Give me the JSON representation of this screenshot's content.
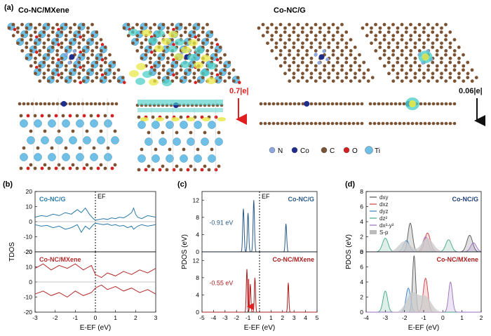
{
  "panel_a": {
    "tag": "(a)",
    "title_left": "Co-NC/MXene",
    "title_right": "Co-NC/G",
    "charge_left": "0.7|e|",
    "charge_right": "0.06|e|",
    "legend": [
      {
        "symbol": "N",
        "color": "#8fa8e0"
      },
      {
        "symbol": "Co",
        "color": "#1f2d8c"
      },
      {
        "symbol": "C",
        "color": "#7b5232"
      },
      {
        "symbol": "O",
        "color": "#d42020"
      },
      {
        "symbol": "Ti",
        "color": "#6fc0e6"
      }
    ],
    "colors": {
      "ti": "#6fc0e6",
      "carbon": "#7b5232",
      "oxygen": "#d42020",
      "nitrogen": "#8fa8e0",
      "cobalt": "#1f2d8c",
      "charge_accum": "#e8e84a",
      "charge_deplete": "#4fd0c8",
      "arrow_red": "#e02020"
    }
  },
  "chart_data": [
    {
      "panel": "(b)",
      "type": "line",
      "ylabel": "TDOS",
      "xlabel": "E-EF (eV)",
      "xlim": [
        -3,
        3
      ],
      "xticks": [
        -3,
        -2,
        -1,
        0,
        1,
        2,
        3
      ],
      "fermi_label": "EF",
      "subplots": [
        {
          "label": "Co-NC/G",
          "color": "#2a7aa8",
          "ylim": [
            -20,
            20
          ],
          "yticks": [
            20,
            10,
            0,
            -10,
            -20
          ],
          "series": [
            {
              "name": "up",
              "x": [
                -3,
                -2.7,
                -2.4,
                -2.1,
                -1.8,
                -1.5,
                -1.2,
                -0.9,
                -0.7,
                -0.5,
                -0.3,
                -0.1,
                0,
                0.2,
                0.4,
                0.6,
                0.8,
                1.0,
                1.2,
                1.4,
                1.6,
                1.8,
                1.9,
                2.0,
                2.1,
                2.3,
                2.6,
                3.0
              ],
              "y": [
                3,
                4,
                3.5,
                5,
                4,
                6,
                5,
                8,
                6,
                9,
                5,
                2,
                1,
                1.5,
                2,
                1.5,
                2.5,
                2,
                3,
                2.5,
                4,
                6,
                9,
                5,
                3,
                2,
                4,
                3
              ]
            },
            {
              "name": "down",
              "x": [
                -3,
                -2.7,
                -2.4,
                -2.1,
                -1.8,
                -1.5,
                -1.2,
                -0.9,
                -0.7,
                -0.5,
                -0.3,
                -0.1,
                0,
                0.2,
                0.4,
                0.6,
                0.8,
                1.0,
                1.2,
                1.4,
                1.6,
                1.8,
                1.9,
                2.0,
                2.1,
                2.3,
                2.6,
                3.0
              ],
              "y": [
                -2,
                -3,
                -2.5,
                -4,
                -3,
                -5,
                -4,
                -2,
                -7,
                -3,
                -5,
                -2,
                -1,
                -1.5,
                -2,
                -1.5,
                -2.5,
                -2,
                -3,
                -2.5,
                -4,
                -3,
                -5,
                -4,
                -3,
                -2,
                -3,
                -2
              ]
            }
          ]
        },
        {
          "label": "Co-NC/MXene",
          "color": "#b52a2a",
          "ylim": [
            -20,
            20
          ],
          "yticks": [
            20,
            10,
            0,
            -10,
            -20
          ],
          "series": [
            {
              "name": "up",
              "x": [
                -3,
                -2.6,
                -2.2,
                -1.8,
                -1.4,
                -1.0,
                -0.6,
                -0.2,
                0,
                0.3,
                0.6,
                1.0,
                1.4,
                1.8,
                2.2,
                2.6,
                3.0
              ],
              "y": [
                9,
                12,
                8,
                11,
                9,
                12,
                8,
                11,
                5,
                3,
                6,
                4,
                7,
                5,
                8,
                6,
                9
              ]
            },
            {
              "name": "down",
              "x": [
                -3,
                -2.6,
                -2.2,
                -1.8,
                -1.4,
                -1.0,
                -0.6,
                -0.2,
                0,
                0.3,
                0.6,
                1.0,
                1.4,
                1.8,
                2.2,
                2.6,
                3.0
              ],
              "y": [
                -8,
                -6,
                -9,
                -7,
                -10,
                -6,
                -9,
                -7,
                -4,
                -2,
                -5,
                -3,
                -6,
                -4,
                -7,
                -5,
                -8
              ]
            }
          ]
        }
      ]
    },
    {
      "panel": "(c)",
      "type": "line",
      "ylabel": "PDOS (eV)",
      "xlabel": "E-EF (eV)",
      "xlim": [
        -5,
        5
      ],
      "xticks": [
        -5,
        -4,
        -3,
        -2,
        -1,
        0,
        1,
        2,
        3,
        4,
        5
      ],
      "fermi_label": "EF",
      "subplots": [
        {
          "label": "Co-NC/G",
          "color": "#2a5a88",
          "ylim": [
            0,
            14
          ],
          "yticks": [
            0,
            4,
            8,
            12
          ],
          "annotation": "-0.91 eV",
          "peaks": [
            {
              "x": -1.4,
              "y": 10,
              "w": 0.06
            },
            {
              "x": -1.0,
              "y": 9,
              "w": 0.06
            },
            {
              "x": -0.5,
              "y": 12,
              "w": 0.06
            },
            {
              "x": 2.3,
              "y": 6.5,
              "w": 0.06
            }
          ]
        },
        {
          "label": "Co-NC/MXene",
          "color": "#a81f1f",
          "ylim": [
            0,
            14
          ],
          "yticks": [
            0,
            4,
            8,
            12
          ],
          "annotation": "-0.55 eV",
          "peaks": [
            {
              "x": -1.1,
              "y": 10,
              "w": 0.05
            },
            {
              "x": -0.8,
              "y": 6.5,
              "w": 0.05
            },
            {
              "x": -0.4,
              "y": 8,
              "w": 0.05
            },
            {
              "x": 2.5,
              "y": 6.8,
              "w": 0.05
            }
          ]
        }
      ]
    },
    {
      "panel": "(d)",
      "type": "line",
      "ylabel": "PDOS (eV)",
      "xlabel": "E-EF (eV)",
      "xlim": [
        -4,
        2
      ],
      "xticks": [
        -4,
        -3,
        -2,
        -1,
        0,
        1,
        2
      ],
      "legend": [
        {
          "name": "dxy",
          "color": "#555555"
        },
        {
          "name": "dxz",
          "color": "#d04040"
        },
        {
          "name": "dyz",
          "color": "#3a7fc0"
        },
        {
          "name": "dz²",
          "color": "#40a880"
        },
        {
          "name": "dx²-y²",
          "color": "#9a6fc0"
        },
        {
          "name": "S-p",
          "color": "#bbbbbb"
        }
      ],
      "subplots": [
        {
          "label": "Co-NC/G",
          "ylim": [
            0,
            8
          ],
          "yticks": [
            0,
            2,
            4,
            6,
            8
          ],
          "peaks": [
            {
              "series": "dxy",
              "x": -1.7,
              "y": 3.8,
              "w": 0.12
            },
            {
              "series": "dxy",
              "x": 1.4,
              "y": 2.2,
              "w": 0.15
            },
            {
              "series": "dxz",
              "x": -0.8,
              "y": 2.5,
              "w": 0.15
            },
            {
              "series": "dyz",
              "x": -1.9,
              "y": 1.5,
              "w": 0.15
            },
            {
              "series": "dz²",
              "x": -3.0,
              "y": 1.8,
              "w": 0.15
            },
            {
              "series": "dz²",
              "x": 0.3,
              "y": 1.6,
              "w": 0.15
            },
            {
              "series": "dx²-y²",
              "x": -0.9,
              "y": 2.0,
              "w": 0.15
            },
            {
              "series": "dx²-y²",
              "x": 1.6,
              "y": 1.2,
              "w": 0.15
            },
            {
              "series": "S-p",
              "x": -2.0,
              "y": 1.4,
              "w": 0.3
            },
            {
              "series": "S-p",
              "x": -0.8,
              "y": 1.8,
              "w": 0.3
            }
          ]
        },
        {
          "label": "Co-NC/MXene",
          "ylim": [
            0,
            8
          ],
          "yticks": [
            0,
            2,
            4,
            6,
            8
          ],
          "peaks": [
            {
              "series": "dxy",
              "x": -1.5,
              "y": 7.5,
              "w": 0.08
            },
            {
              "series": "dxz",
              "x": -0.9,
              "y": 4.5,
              "w": 0.12
            },
            {
              "series": "dyz",
              "x": -1.8,
              "y": 3.2,
              "w": 0.12
            },
            {
              "series": "dz²",
              "x": -3.0,
              "y": 2.8,
              "w": 0.12
            },
            {
              "series": "dx²-y²",
              "x": 0.4,
              "y": 4.0,
              "w": 0.1
            },
            {
              "series": "S-p",
              "x": -1.6,
              "y": 2.5,
              "w": 0.3
            },
            {
              "series": "S-p",
              "x": -0.9,
              "y": 2.0,
              "w": 0.3
            }
          ]
        }
      ]
    }
  ]
}
